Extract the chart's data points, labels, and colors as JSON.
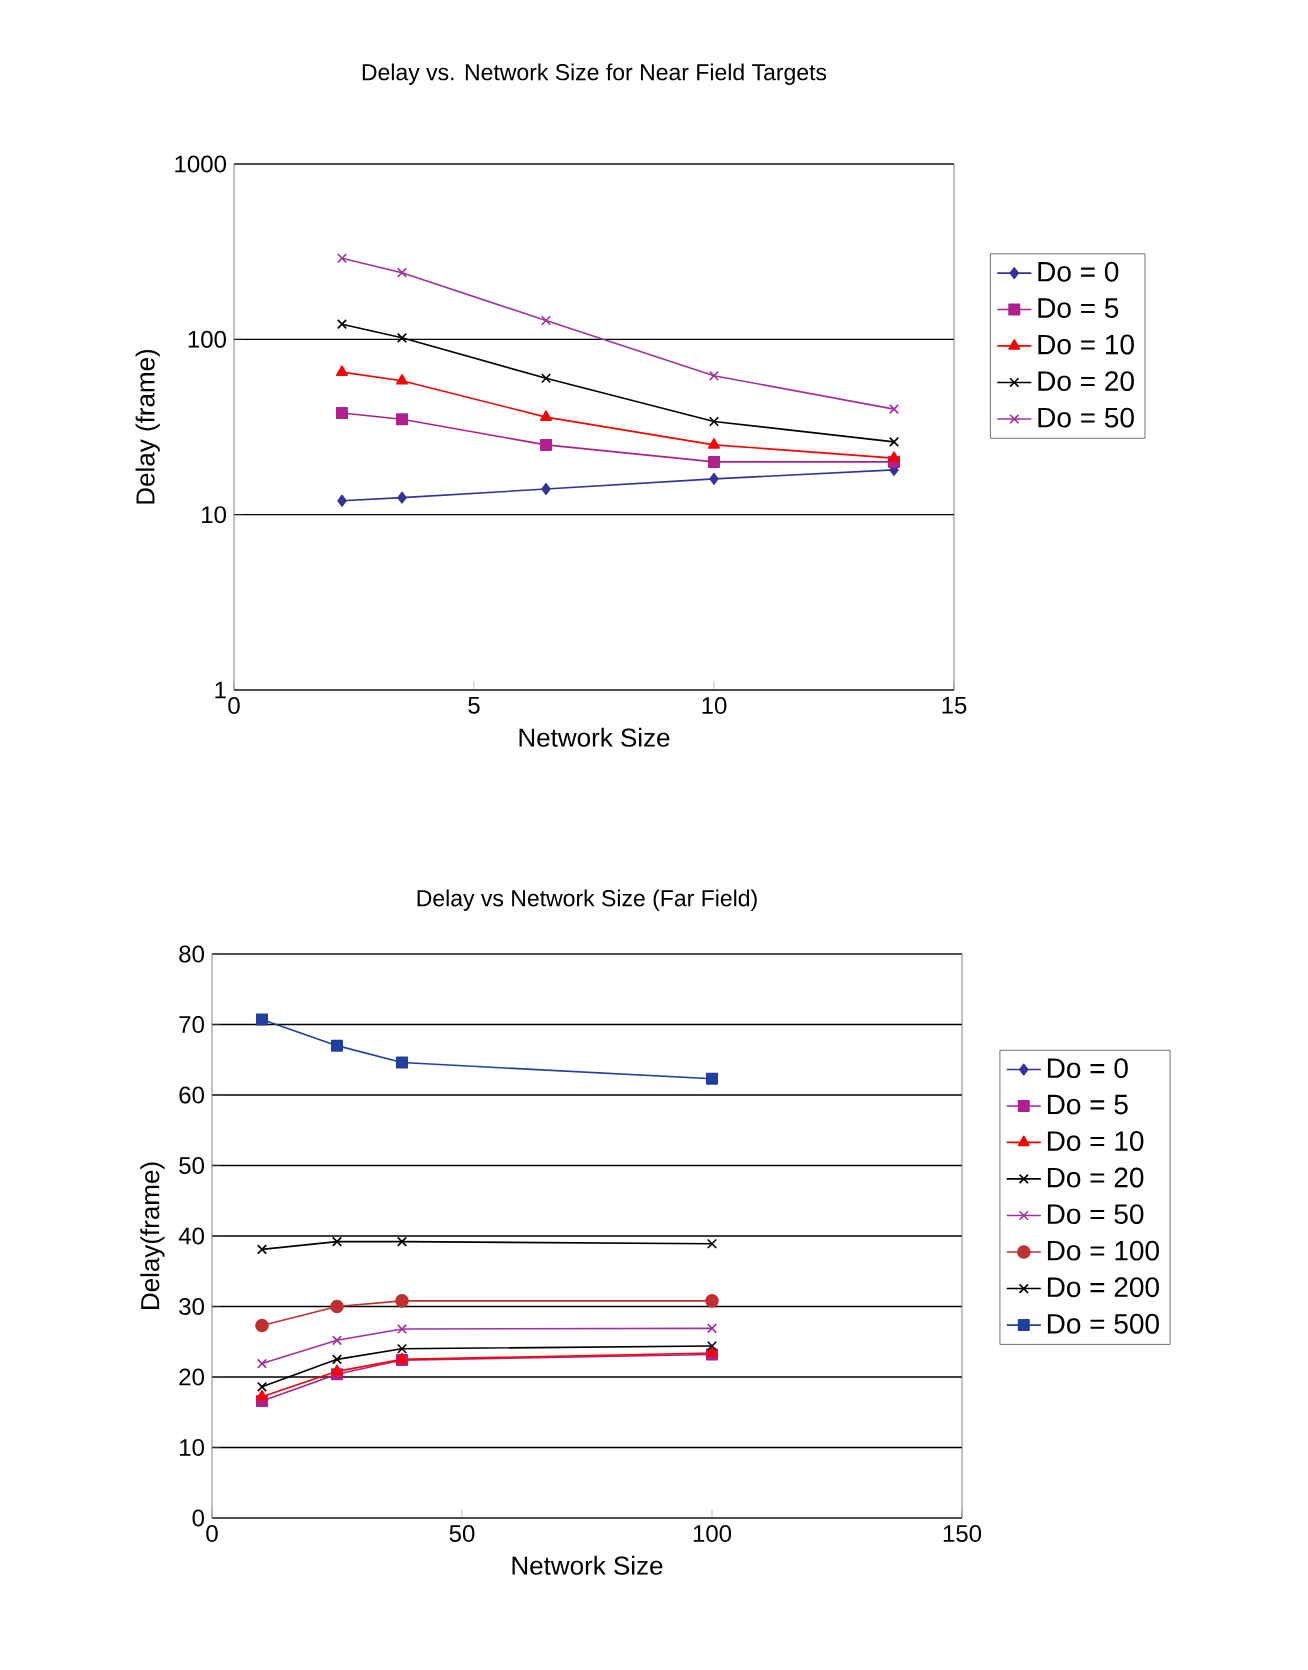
{
  "chart_data": [
    {
      "type": "line",
      "title": "Delay vs. Network Size for Near Field Targets",
      "xlabel": "Network Size",
      "ylabel": "Delay (frame)",
      "log": "y",
      "grid": "y",
      "legend": "right",
      "xlim": [
        0,
        15
      ],
      "xticks": [
        0,
        5,
        10,
        15
      ],
      "ylim": [
        1,
        1000
      ],
      "yticks": [
        1,
        10,
        100,
        1000
      ],
      "x": [
        2.25,
        3.5,
        6.5,
        10,
        13.75
      ],
      "series": [
        {
          "name": "Do = 0",
          "color": "#333399",
          "marker": "diamond",
          "values": [
            12,
            12.5,
            14,
            16,
            18
          ]
        },
        {
          "name": "Do = 5",
          "color": "#b0208c",
          "marker": "square",
          "values": [
            38,
            35,
            25,
            20,
            20
          ]
        },
        {
          "name": "Do = 10",
          "color": "#ff0000",
          "marker": "triangle",
          "values": [
            65,
            58,
            36,
            25,
            21
          ]
        },
        {
          "name": "Do = 20",
          "color": "#000000",
          "marker": "cross",
          "values": [
            122,
            102,
            60,
            34,
            26
          ]
        },
        {
          "name": "Do = 50",
          "color": "#a030a0",
          "marker": "cross",
          "values": [
            290,
            240,
            128,
            62,
            40
          ]
        }
      ]
    },
    {
      "type": "line",
      "title": "Delay vs Network Size (Far Field)",
      "xlabel": "Network Size",
      "ylabel": "Delay(frame)",
      "grid": "y",
      "legend": "right",
      "xlim": [
        0,
        150
      ],
      "xticks": [
        0,
        50,
        100,
        150
      ],
      "ylim": [
        0,
        80
      ],
      "yticks": [
        0,
        10,
        20,
        30,
        40,
        50,
        60,
        70,
        80
      ],
      "x": [
        10,
        25,
        38,
        100
      ],
      "series": [
        {
          "name": "Do = 0",
          "color": "#333399",
          "marker": "diamond",
          "values": [
            null,
            null,
            null,
            null
          ]
        },
        {
          "name": "Do = 5",
          "color": "#b0208c",
          "marker": "square",
          "values": [
            16.6,
            20.4,
            22.4,
            23.2
          ]
        },
        {
          "name": "Do = 10",
          "color": "#ff0000",
          "marker": "triangle",
          "values": [
            17.2,
            20.8,
            22.5,
            23.4
          ]
        },
        {
          "name": "Do = 20",
          "color": "#000000",
          "marker": "cross",
          "values": [
            18.6,
            22.5,
            24.0,
            24.4
          ]
        },
        {
          "name": "Do = 50",
          "color": "#a030a0",
          "marker": "cross",
          "values": [
            21.9,
            25.2,
            26.8,
            26.9
          ]
        },
        {
          "name": "Do = 100",
          "color": "#c03030",
          "marker": "circle",
          "values": [
            27.3,
            30.0,
            30.8,
            30.8
          ]
        },
        {
          "name": "Do = 200",
          "color": "#000000",
          "marker": "cross",
          "values": [
            38.1,
            39.2,
            39.2,
            38.9
          ]
        },
        {
          "name": "Do = 500",
          "color": "#2040a0",
          "marker": "square",
          "values": [
            70.7,
            67.0,
            64.6,
            62.3
          ]
        }
      ]
    }
  ]
}
